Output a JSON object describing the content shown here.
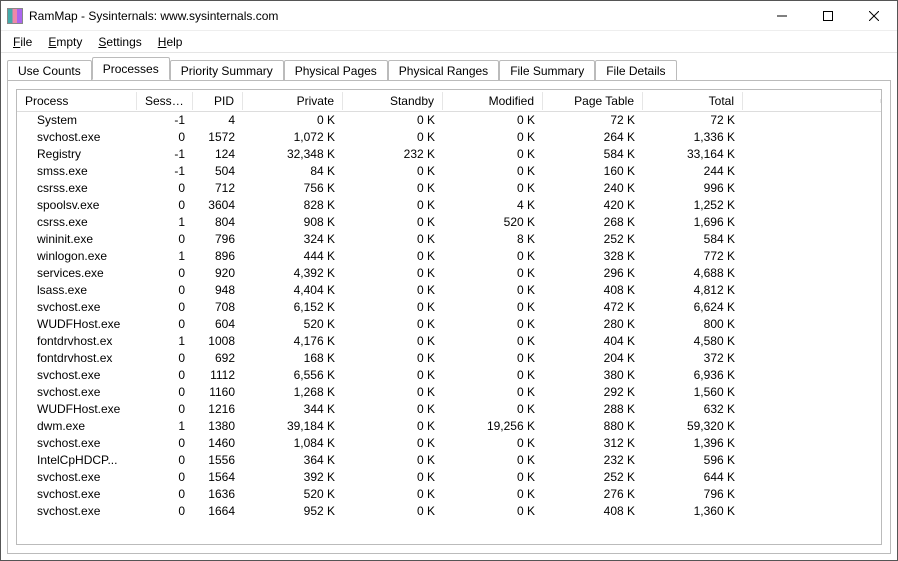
{
  "window": {
    "title": "RamMap - Sysinternals: www.sysinternals.com"
  },
  "menubar": {
    "items": [
      {
        "underline": "F",
        "rest": "ile"
      },
      {
        "underline": "E",
        "rest": "mpty"
      },
      {
        "underline": "S",
        "rest": "ettings"
      },
      {
        "underline": "H",
        "rest": "elp"
      }
    ]
  },
  "tabs": {
    "items": [
      {
        "label": "Use Counts",
        "active": false
      },
      {
        "label": "Processes",
        "active": true
      },
      {
        "label": "Priority Summary",
        "active": false
      },
      {
        "label": "Physical Pages",
        "active": false
      },
      {
        "label": "Physical Ranges",
        "active": false
      },
      {
        "label": "File Summary",
        "active": false
      },
      {
        "label": "File Details",
        "active": false
      }
    ]
  },
  "columns": {
    "process": "Process",
    "session": "Session",
    "pid": "PID",
    "private": "Private",
    "standby": "Standby",
    "modified": "Modified",
    "pagetbl": "Page Table",
    "total": "Total"
  },
  "rows": [
    {
      "process": "System",
      "session": "-1",
      "pid": "4",
      "private": "0 K",
      "standby": "0 K",
      "modified": "0 K",
      "pagetbl": "72 K",
      "total": "72 K"
    },
    {
      "process": "svchost.exe",
      "session": "0",
      "pid": "1572",
      "private": "1,072 K",
      "standby": "0 K",
      "modified": "0 K",
      "pagetbl": "264 K",
      "total": "1,336 K"
    },
    {
      "process": "Registry",
      "session": "-1",
      "pid": "124",
      "private": "32,348 K",
      "standby": "232 K",
      "modified": "0 K",
      "pagetbl": "584 K",
      "total": "33,164 K"
    },
    {
      "process": "smss.exe",
      "session": "-1",
      "pid": "504",
      "private": "84 K",
      "standby": "0 K",
      "modified": "0 K",
      "pagetbl": "160 K",
      "total": "244 K"
    },
    {
      "process": "csrss.exe",
      "session": "0",
      "pid": "712",
      "private": "756 K",
      "standby": "0 K",
      "modified": "0 K",
      "pagetbl": "240 K",
      "total": "996 K"
    },
    {
      "process": "spoolsv.exe",
      "session": "0",
      "pid": "3604",
      "private": "828 K",
      "standby": "0 K",
      "modified": "4 K",
      "pagetbl": "420 K",
      "total": "1,252 K"
    },
    {
      "process": "csrss.exe",
      "session": "1",
      "pid": "804",
      "private": "908 K",
      "standby": "0 K",
      "modified": "520 K",
      "pagetbl": "268 K",
      "total": "1,696 K"
    },
    {
      "process": "wininit.exe",
      "session": "0",
      "pid": "796",
      "private": "324 K",
      "standby": "0 K",
      "modified": "8 K",
      "pagetbl": "252 K",
      "total": "584 K"
    },
    {
      "process": "winlogon.exe",
      "session": "1",
      "pid": "896",
      "private": "444 K",
      "standby": "0 K",
      "modified": "0 K",
      "pagetbl": "328 K",
      "total": "772 K"
    },
    {
      "process": "services.exe",
      "session": "0",
      "pid": "920",
      "private": "4,392 K",
      "standby": "0 K",
      "modified": "0 K",
      "pagetbl": "296 K",
      "total": "4,688 K"
    },
    {
      "process": "lsass.exe",
      "session": "0",
      "pid": "948",
      "private": "4,404 K",
      "standby": "0 K",
      "modified": "0 K",
      "pagetbl": "408 K",
      "total": "4,812 K"
    },
    {
      "process": "svchost.exe",
      "session": "0",
      "pid": "708",
      "private": "6,152 K",
      "standby": "0 K",
      "modified": "0 K",
      "pagetbl": "472 K",
      "total": "6,624 K"
    },
    {
      "process": "WUDFHost.exe",
      "session": "0",
      "pid": "604",
      "private": "520 K",
      "standby": "0 K",
      "modified": "0 K",
      "pagetbl": "280 K",
      "total": "800 K"
    },
    {
      "process": "fontdrvhost.ex",
      "session": "1",
      "pid": "1008",
      "private": "4,176 K",
      "standby": "0 K",
      "modified": "0 K",
      "pagetbl": "404 K",
      "total": "4,580 K"
    },
    {
      "process": "fontdrvhost.ex",
      "session": "0",
      "pid": "692",
      "private": "168 K",
      "standby": "0 K",
      "modified": "0 K",
      "pagetbl": "204 K",
      "total": "372 K"
    },
    {
      "process": "svchost.exe",
      "session": "0",
      "pid": "1112",
      "private": "6,556 K",
      "standby": "0 K",
      "modified": "0 K",
      "pagetbl": "380 K",
      "total": "6,936 K"
    },
    {
      "process": "svchost.exe",
      "session": "0",
      "pid": "1160",
      "private": "1,268 K",
      "standby": "0 K",
      "modified": "0 K",
      "pagetbl": "292 K",
      "total": "1,560 K"
    },
    {
      "process": "WUDFHost.exe",
      "session": "0",
      "pid": "1216",
      "private": "344 K",
      "standby": "0 K",
      "modified": "0 K",
      "pagetbl": "288 K",
      "total": "632 K"
    },
    {
      "process": "dwm.exe",
      "session": "1",
      "pid": "1380",
      "private": "39,184 K",
      "standby": "0 K",
      "modified": "19,256 K",
      "pagetbl": "880 K",
      "total": "59,320 K"
    },
    {
      "process": "svchost.exe",
      "session": "0",
      "pid": "1460",
      "private": "1,084 K",
      "standby": "0 K",
      "modified": "0 K",
      "pagetbl": "312 K",
      "total": "1,396 K"
    },
    {
      "process": "IntelCpHDCP...",
      "session": "0",
      "pid": "1556",
      "private": "364 K",
      "standby": "0 K",
      "modified": "0 K",
      "pagetbl": "232 K",
      "total": "596 K"
    },
    {
      "process": "svchost.exe",
      "session": "0",
      "pid": "1564",
      "private": "392 K",
      "standby": "0 K",
      "modified": "0 K",
      "pagetbl": "252 K",
      "total": "644 K"
    },
    {
      "process": "svchost.exe",
      "session": "0",
      "pid": "1636",
      "private": "520 K",
      "standby": "0 K",
      "modified": "0 K",
      "pagetbl": "276 K",
      "total": "796 K"
    },
    {
      "process": "svchost.exe",
      "session": "0",
      "pid": "1664",
      "private": "952 K",
      "standby": "0 K",
      "modified": "0 K",
      "pagetbl": "408 K",
      "total": "1,360 K"
    }
  ]
}
